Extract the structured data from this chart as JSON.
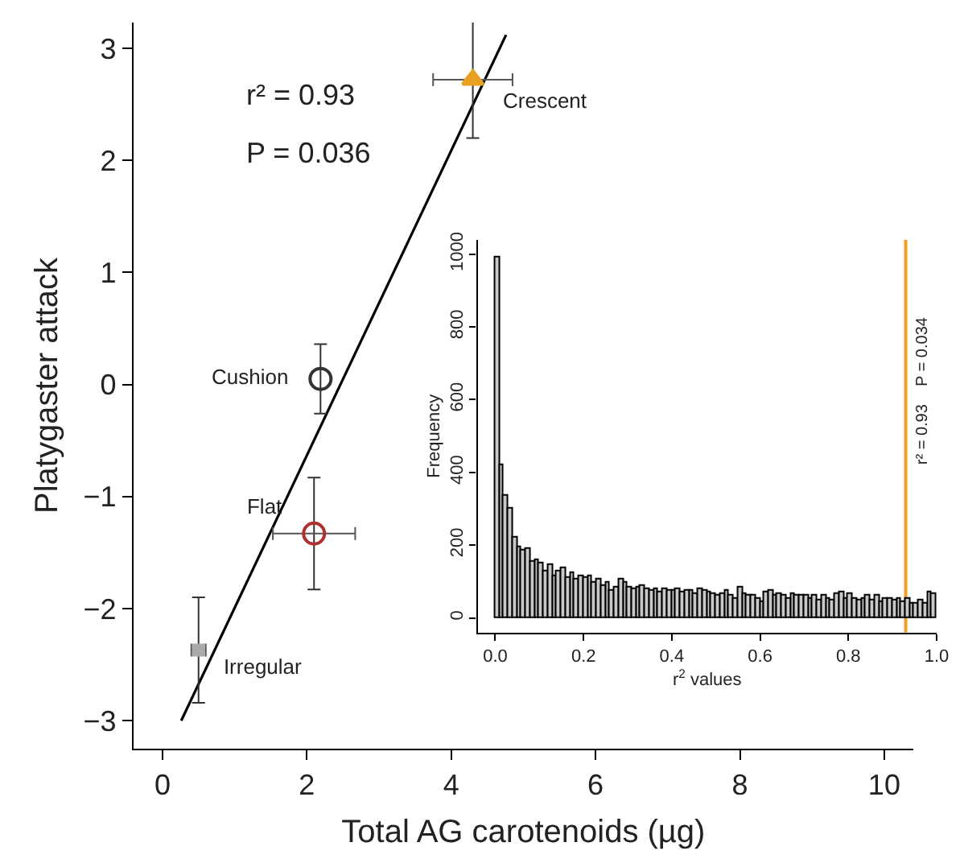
{
  "chart_data": [
    {
      "type": "scatter",
      "xlabel": "Total AG carotenoids (µg)",
      "ylabel": "Platygaster attack",
      "xlim": [
        -0.4,
        10.4
      ],
      "ylim": [
        -3.25,
        3.23
      ],
      "xticks": [
        0,
        2,
        4,
        6,
        8,
        10
      ],
      "yticks": [
        -3,
        -2,
        -1,
        0,
        1,
        2,
        3
      ],
      "series": [
        {
          "type": "line",
          "color": "#000000",
          "x": [
            0.26,
            4.76
          ],
          "values": [
            -3.0,
            3.12
          ],
          "marker": "none",
          "line_style": "solid"
        },
        {
          "name": "Crescent",
          "color": "#e8a020",
          "x": [
            4.3
          ],
          "values": [
            2.72
          ],
          "errors": [
            0.52
          ],
          "xerrors": [
            0.55
          ],
          "marker": "triangle"
        },
        {
          "name": "Cushion",
          "color": "#333333",
          "x": [
            2.19
          ],
          "values": [
            0.05
          ],
          "errors": [
            0.31
          ],
          "marker": "circle"
        },
        {
          "name": "Flat",
          "color": "#b03030",
          "x": [
            2.1
          ],
          "values": [
            -1.33
          ],
          "errors": [
            0.5
          ],
          "xerrors": [
            0.57
          ],
          "marker": "circle"
        },
        {
          "name": "Irregular",
          "color": "#aaaaaa",
          "x": [
            0.5
          ],
          "values": [
            -2.37
          ],
          "errors": [
            0.47
          ],
          "xerrors": [
            0.1
          ],
          "marker": "square"
        }
      ],
      "annotations": [
        "r² = 0.93",
        "P = 0.036"
      ]
    },
    {
      "type": "histogram",
      "xlabel": "r$^{2}$ values",
      "ylabel": "Frequency",
      "color": "#c8c8c8",
      "xlim": [
        -0.04,
        1.0
      ],
      "ylim": [
        -40,
        1040
      ],
      "xticks": [
        {
          "value": 0,
          "label": "0.0"
        },
        {
          "value": 0.2,
          "label": "0.2"
        },
        {
          "value": 0.4,
          "label": "0.4"
        },
        {
          "value": 0.6,
          "label": "0.6"
        },
        {
          "value": 0.8,
          "label": "0.8"
        },
        {
          "value": 1.0,
          "label": "1.0"
        }
      ],
      "yticks": [
        0,
        200,
        400,
        600,
        800,
        1000
      ],
      "bins": [
        0.0,
        0.01,
        0.02,
        0.03,
        0.04,
        0.05,
        0.06,
        0.07,
        0.08,
        0.09,
        0.1,
        0.11,
        0.12,
        0.13,
        0.14,
        0.15,
        0.16,
        0.17,
        0.18,
        0.19,
        0.2,
        0.21,
        0.22,
        0.23,
        0.24,
        0.25,
        0.26,
        0.27,
        0.28,
        0.29,
        0.3,
        0.31,
        0.32,
        0.33,
        0.34,
        0.35,
        0.36,
        0.37,
        0.38,
        0.39,
        0.4,
        0.41,
        0.42,
        0.43,
        0.44,
        0.45,
        0.46,
        0.47,
        0.48,
        0.49,
        0.5,
        0.51,
        0.52,
        0.53,
        0.54,
        0.55,
        0.56,
        0.57,
        0.58,
        0.59,
        0.6,
        0.61,
        0.62,
        0.63,
        0.64,
        0.65,
        0.66,
        0.67,
        0.68,
        0.69,
        0.7,
        0.71,
        0.72,
        0.73,
        0.74,
        0.75,
        0.76,
        0.77,
        0.78,
        0.79,
        0.8,
        0.81,
        0.82,
        0.83,
        0.84,
        0.85,
        0.86,
        0.87,
        0.88,
        0.89,
        0.9,
        0.91,
        0.92,
        0.93,
        0.94,
        0.95,
        0.96,
        0.97,
        0.98,
        0.99,
        1.0
      ],
      "values": [
        990,
        420,
        335,
        300,
        220,
        195,
        185,
        190,
        155,
        160,
        150,
        130,
        145,
        115,
        130,
        135,
        110,
        125,
        105,
        115,
        110,
        115,
        95,
        105,
        90,
        95,
        75,
        85,
        105,
        95,
        85,
        80,
        85,
        90,
        80,
        75,
        80,
        70,
        80,
        75,
        75,
        80,
        70,
        75,
        75,
        65,
        80,
        75,
        70,
        65,
        60,
        65,
        75,
        60,
        55,
        85,
        65,
        60,
        60,
        55,
        45,
        70,
        75,
        60,
        65,
        60,
        55,
        65,
        60,
        60,
        60,
        55,
        60,
        50,
        60,
        55,
        50,
        65,
        70,
        55,
        65,
        55,
        50,
        55,
        60,
        50,
        60,
        45,
        55,
        55,
        50,
        55,
        45,
        55,
        40,
        40,
        50,
        40,
        70,
        65
      ],
      "ref_lines": [
        {
          "axis": "x",
          "value": 0.93,
          "label": "r² = 0.93    P = 0.034",
          "color": "#f0a020",
          "line_style": "solid"
        }
      ]
    }
  ]
}
